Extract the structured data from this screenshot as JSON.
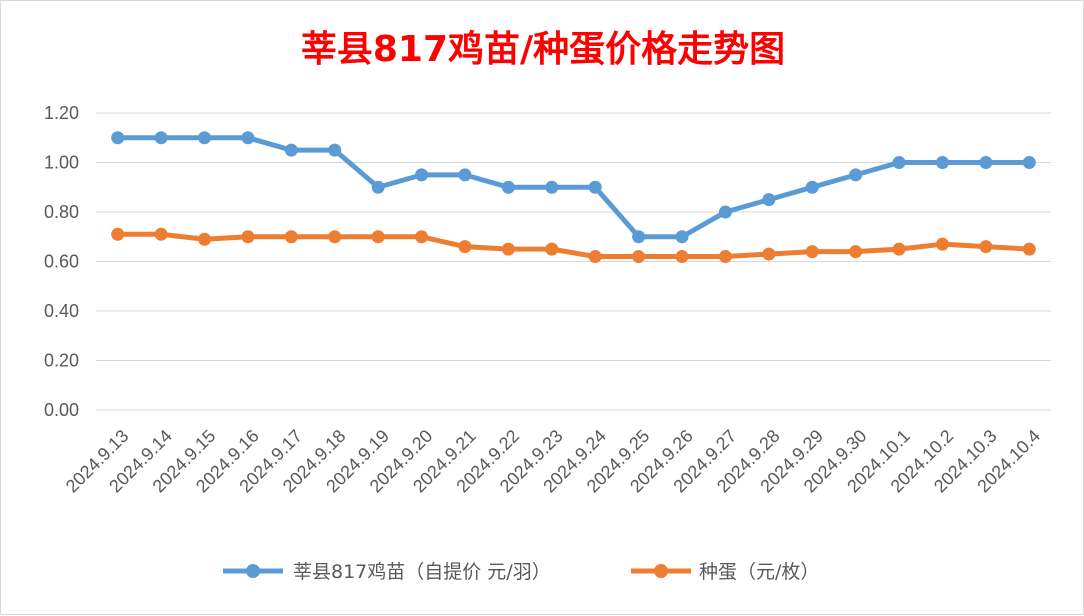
{
  "chart_data": {
    "type": "line",
    "title": "莘县817鸡苗/种蛋价格走势图",
    "categories": [
      "2024.9.13",
      "2024.9.14",
      "2024.9.15",
      "2024.9.16",
      "2024.9.17",
      "2024.9.18",
      "2024.9.19",
      "2024.9.20",
      "2024.9.21",
      "2024.9.22",
      "2024.9.23",
      "2024.9.24",
      "2024.9.25",
      "2024.9.26",
      "2024.9.27",
      "2024.9.28",
      "2024.9.29",
      "2024.9.30",
      "2024.10.1",
      "2024.10.2",
      "2024.10.3",
      "2024.10.4"
    ],
    "series": [
      {
        "name": "莘县817鸡苗（自提价 元/羽）",
        "color": "#5b9bd5",
        "values": [
          1.1,
          1.1,
          1.1,
          1.1,
          1.05,
          1.05,
          0.9,
          0.95,
          0.95,
          0.9,
          0.9,
          0.9,
          0.7,
          0.7,
          0.8,
          0.85,
          0.9,
          0.95,
          1.0,
          1.0,
          1.0,
          1.0
        ]
      },
      {
        "name": "种蛋（元/枚）",
        "color": "#ed7d31",
        "values": [
          0.71,
          0.71,
          0.69,
          0.7,
          0.7,
          0.7,
          0.7,
          0.7,
          0.66,
          0.65,
          0.65,
          0.62,
          0.62,
          0.62,
          0.62,
          0.63,
          0.64,
          0.64,
          0.65,
          0.67,
          0.66,
          0.65
        ]
      }
    ],
    "ylim": [
      0,
      1.2
    ],
    "yticks": [
      "0.00",
      "0.20",
      "0.40",
      "0.60",
      "0.80",
      "1.00",
      "1.20"
    ],
    "grid": true,
    "legend_position": "bottom"
  }
}
